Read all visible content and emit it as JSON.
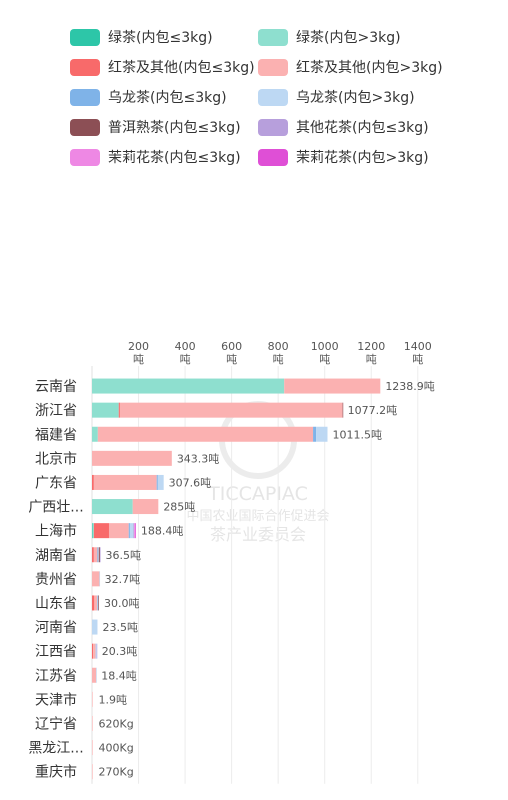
{
  "legend": [
    {
      "label": "绿茶(内包≤3kg)",
      "color": "#2DC6A8"
    },
    {
      "label": "绿茶(内包>3kg)",
      "color": "#8EDFCF"
    },
    {
      "label": "红茶及其他(内包≤3kg)",
      "color": "#F86A6A"
    },
    {
      "label": "红茶及其他(内包>3kg)",
      "color": "#FBB1B1"
    },
    {
      "label": "乌龙茶(内包≤3kg)",
      "color": "#7FB3E8"
    },
    {
      "label": "乌龙茶(内包>3kg)",
      "color": "#BDD8F3"
    },
    {
      "label": "普洱熟茶(内包≤3kg)",
      "color": "#8C4F55"
    },
    {
      "label": "其他花茶(内包≤3kg)",
      "color": "#B79FDC"
    },
    {
      "label": "茉莉花茶(内包≤3kg)",
      "color": "#EE88E4"
    },
    {
      "label": "茉莉花茶(内包>3kg)",
      "color": "#DF4FD6"
    }
  ],
  "watermark": {
    "line1": "TICCAPIAC",
    "line2": "中国农业国际合作促进会",
    "line3": "茶产业委员会"
  },
  "chart_data": {
    "type": "bar",
    "orientation": "horizontal",
    "stacked": true,
    "x_ticks": [
      200,
      400,
      600,
      800,
      1000,
      1200,
      1400
    ],
    "tick_unit": "吨",
    "xlim": [
      0,
      1400
    ],
    "grid": true,
    "legend_position": "top",
    "categories": [
      "云南省",
      "浙江省",
      "福建省",
      "北京市",
      "广东省",
      "广西壮...",
      "上海市",
      "湖南省",
      "贵州省",
      "山东省",
      "河南省",
      "江西省",
      "江苏省",
      "天津市",
      "辽宁省",
      "黑龙江...",
      "重庆市"
    ],
    "totals_label": [
      "1238.9吨",
      "1077.2吨",
      "1011.5吨",
      "343.3吨",
      "307.6吨",
      "285吨",
      "188.4吨",
      "36.5吨",
      "32.7吨",
      "30.0吨",
      "23.5吨",
      "20.3吨",
      "18.4吨",
      "1.9吨",
      "620Kg",
      "400Kg",
      "270Kg"
    ],
    "series": [
      {
        "name": "绿茶(内包≤3kg)",
        "color": "#2DC6A8",
        "values": [
          0,
          0,
          0,
          0,
          0,
          0,
          3,
          0,
          0,
          0,
          0,
          0,
          0,
          0,
          0,
          0,
          0
        ]
      },
      {
        "name": "绿茶(内包>3kg)",
        "color": "#8EDFCF",
        "values": [
          826,
          115,
          25,
          0,
          0,
          175,
          5,
          0,
          0,
          0,
          0,
          0,
          0,
          0,
          0,
          0,
          0
        ]
      },
      {
        "name": "红茶及其他(内包≤3kg)",
        "color": "#F86A6A",
        "values": [
          0,
          5,
          0,
          0,
          8,
          0,
          65,
          8,
          0,
          10,
          0,
          5,
          0,
          0,
          0,
          0,
          0
        ]
      },
      {
        "name": "红茶及其他(内包>3kg)",
        "color": "#FBB1B1",
        "values": [
          413,
          957,
          925,
          343,
          270,
          110,
          85,
          15,
          32,
          12,
          0,
          10,
          18,
          1.9,
          0.6,
          0.4,
          0.27
        ]
      },
      {
        "name": "乌龙茶(内包≤3kg)",
        "color": "#7FB3E8",
        "values": [
          0,
          0,
          13,
          0,
          5,
          0,
          5,
          3,
          0,
          2,
          0,
          0,
          0,
          0,
          0,
          0,
          0
        ]
      },
      {
        "name": "乌龙茶(内包>3kg)",
        "color": "#BDD8F3",
        "values": [
          0,
          0,
          49,
          0,
          25,
          0,
          15,
          3,
          0.7,
          3,
          23.5,
          5,
          0.4,
          0,
          0,
          0,
          0
        ]
      },
      {
        "name": "普洱熟茶(内包≤3kg)",
        "color": "#8C4F55",
        "values": [
          0,
          0.2,
          0,
          0,
          0,
          0,
          0,
          5,
          0,
          3,
          0,
          0,
          0,
          0,
          0,
          0,
          0
        ]
      },
      {
        "name": "其他花茶(内包≤3kg)",
        "color": "#B79FDC",
        "values": [
          0,
          0,
          0,
          0,
          0,
          0,
          3,
          2.5,
          0,
          0,
          0,
          0.3,
          0,
          0,
          0,
          0,
          0
        ]
      },
      {
        "name": "茉莉花茶(内包≤3kg)",
        "color": "#EE88E4",
        "values": [
          0,
          0,
          0,
          0,
          0,
          0,
          4,
          0,
          0,
          0,
          0,
          0,
          0,
          0,
          0,
          0,
          0
        ]
      },
      {
        "name": "茉莉花茶(内包>3kg)",
        "color": "#DF4FD6",
        "values": [
          0,
          0,
          0,
          0,
          0,
          0,
          3.4,
          0,
          0,
          0,
          0,
          0,
          0,
          0,
          0,
          0,
          0
        ]
      }
    ]
  }
}
